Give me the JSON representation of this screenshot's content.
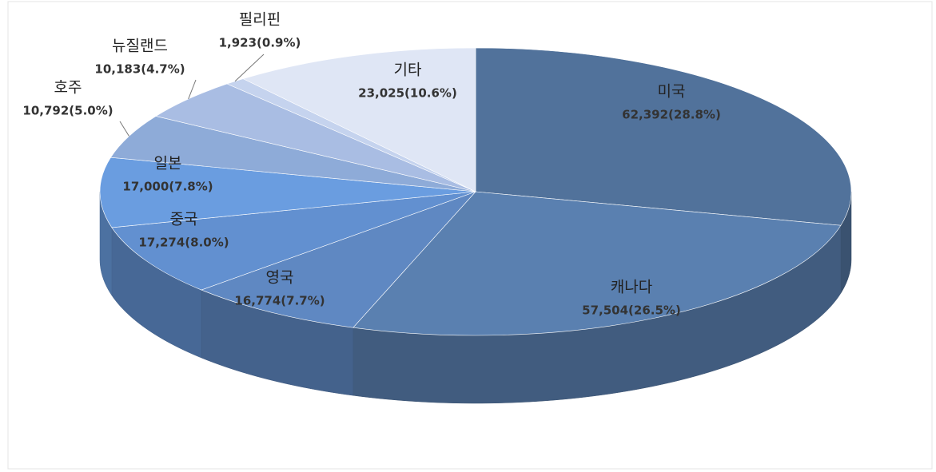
{
  "chart_data": {
    "type": "pie3d",
    "categories": [
      "미국",
      "캐나다",
      "영국",
      "중국",
      "일본",
      "호주",
      "뉴질랜드",
      "필리핀",
      "기타"
    ],
    "values": [
      62392,
      57504,
      16774,
      17274,
      17000,
      10792,
      10183,
      1923,
      23025
    ],
    "value_labels": [
      "62,392(28.8%)",
      "57,504(26.5%)",
      "16,774(7.7%)",
      "17,274(8.0%)",
      "17,000(7.8%)",
      "10,792(5.0%)",
      "10,183(4.7%)",
      "1,923(0.9%)",
      "23,025(10.6%)"
    ],
    "colors": [
      "#51729b",
      "#5a80b0",
      "#5f88c2",
      "#6290d0",
      "#6a9de0",
      "#8eabd8",
      "#a9bde3",
      "#c5d3ee",
      "#dfe6f5"
    ]
  }
}
